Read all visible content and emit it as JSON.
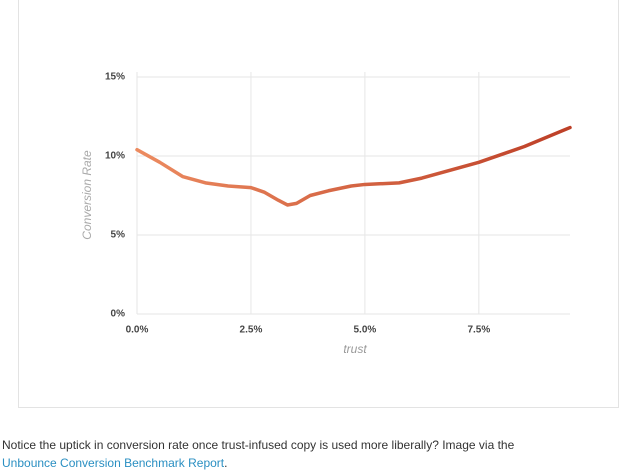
{
  "chart_data": {
    "type": "line",
    "x": [
      0,
      0.5,
      1.0,
      1.5,
      2.0,
      2.5,
      2.8,
      3.1,
      3.3,
      3.5,
      3.8,
      4.2,
      4.7,
      5.0,
      5.75,
      6.25,
      7.5,
      8.5,
      9.5
    ],
    "values": [
      10.4,
      9.6,
      8.7,
      8.3,
      8.1,
      8.0,
      7.7,
      7.2,
      6.9,
      7.0,
      7.5,
      7.8,
      8.1,
      8.2,
      8.3,
      8.6,
      9.6,
      10.6,
      11.8
    ],
    "color": [
      "#ec8b60",
      "#bd3f27"
    ],
    "xlabel": "trust",
    "ylabel": "Conversion Rate",
    "xlim": [
      0,
      9.5
    ],
    "ylim": [
      0,
      15
    ],
    "xticks": [
      {
        "value": 0,
        "label": "0.0%"
      },
      {
        "value": 2.5,
        "label": "2.5%"
      },
      {
        "value": 5,
        "label": "5.0%"
      },
      {
        "value": 7.5,
        "label": "7.5%"
      }
    ],
    "yticks": [
      {
        "value": 0,
        "label": "0%"
      },
      {
        "value": 5,
        "label": "5%"
      },
      {
        "value": 10,
        "label": "10%"
      },
      {
        "value": 15,
        "label": "15%"
      }
    ],
    "grid": true
  },
  "caption": {
    "text": "Notice the uptick in conversion rate once trust-infused copy is used more liberally? Image via the",
    "link": "Unbounce Conversion Benchmark Report",
    "end": "."
  }
}
